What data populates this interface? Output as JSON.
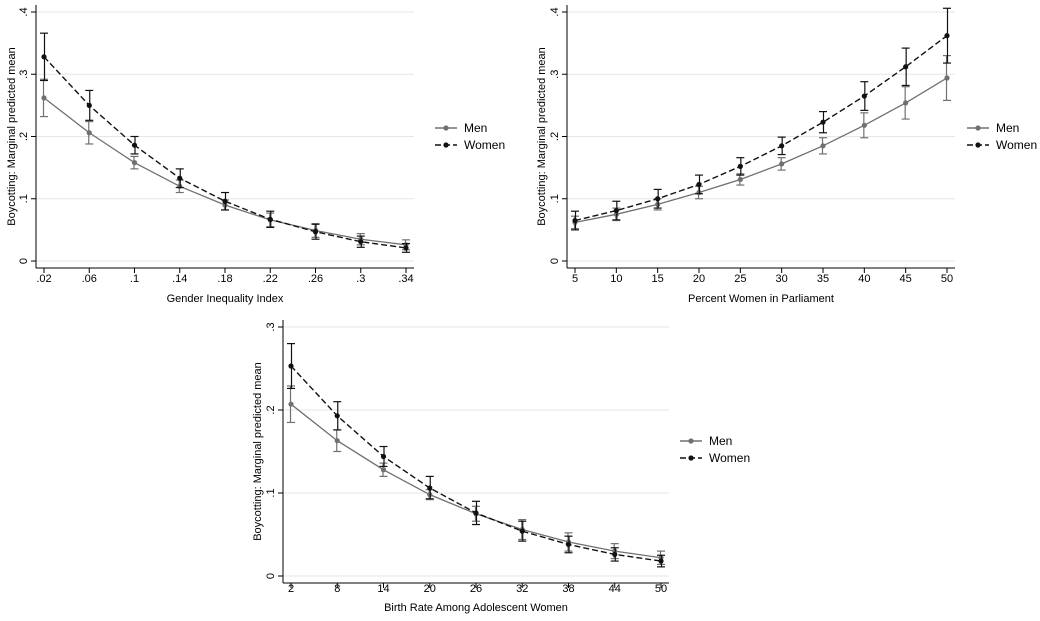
{
  "chart_data": [
    {
      "type": "line",
      "xlabel": "Gender Inequality Index",
      "ylabel": "Boycotting: Marginal predicted mean",
      "x": [
        0.02,
        0.06,
        0.1,
        0.14,
        0.18,
        0.22,
        0.26,
        0.3,
        0.34
      ],
      "xticks": [
        ".02",
        ".06",
        ".1",
        ".14",
        ".18",
        ".22",
        ".26",
        ".3",
        ".34"
      ],
      "yticks": [
        0,
        0.1,
        0.2,
        0.3,
        0.4
      ],
      "yticklabels": [
        "0",
        ".1",
        ".2",
        ".3",
        ".4"
      ],
      "ylim": [
        0,
        0.4
      ],
      "grid": true,
      "legend": "right",
      "series": [
        {
          "name": "Men",
          "values": [
            0.262,
            0.206,
            0.158,
            0.12,
            0.09,
            0.066,
            0.049,
            0.035,
            0.026
          ],
          "ci_low": [
            0.232,
            0.188,
            0.148,
            0.11,
            0.082,
            0.055,
            0.038,
            0.026,
            0.018
          ],
          "ci_high": [
            0.292,
            0.224,
            0.168,
            0.13,
            0.098,
            0.077,
            0.06,
            0.044,
            0.034
          ]
        },
        {
          "name": "Women",
          "values": [
            0.328,
            0.25,
            0.186,
            0.133,
            0.096,
            0.067,
            0.047,
            0.031,
            0.021
          ],
          "ci_low": [
            0.29,
            0.226,
            0.172,
            0.118,
            0.082,
            0.054,
            0.035,
            0.022,
            0.014
          ],
          "ci_high": [
            0.366,
            0.274,
            0.2,
            0.148,
            0.11,
            0.08,
            0.059,
            0.04,
            0.028
          ]
        }
      ]
    },
    {
      "type": "line",
      "xlabel": "Percent Women in Parliament",
      "ylabel": "Boycotting: Marginal predicted mean",
      "x": [
        5,
        10,
        15,
        20,
        25,
        30,
        35,
        40,
        45,
        50
      ],
      "xticks": [
        "5",
        "10",
        "15",
        "20",
        "25",
        "30",
        "35",
        "40",
        "45",
        "50"
      ],
      "yticks": [
        0,
        0.1,
        0.2,
        0.3,
        0.4
      ],
      "yticklabels": [
        "0",
        ".1",
        ".2",
        ".3",
        ".4"
      ],
      "ylim": [
        0,
        0.4
      ],
      "grid": true,
      "legend": "right",
      "series": [
        {
          "name": "Men",
          "values": [
            0.062,
            0.075,
            0.091,
            0.11,
            0.131,
            0.156,
            0.185,
            0.218,
            0.254,
            0.294
          ],
          "ci_low": [
            0.052,
            0.065,
            0.082,
            0.1,
            0.122,
            0.146,
            0.172,
            0.198,
            0.228,
            0.258
          ],
          "ci_high": [
            0.072,
            0.085,
            0.1,
            0.12,
            0.14,
            0.166,
            0.198,
            0.238,
            0.28,
            0.33
          ]
        },
        {
          "name": "Women",
          "values": [
            0.065,
            0.081,
            0.1,
            0.123,
            0.152,
            0.185,
            0.223,
            0.265,
            0.312,
            0.362
          ],
          "ci_low": [
            0.05,
            0.066,
            0.085,
            0.108,
            0.138,
            0.171,
            0.206,
            0.242,
            0.282,
            0.318
          ],
          "ci_high": [
            0.08,
            0.096,
            0.115,
            0.138,
            0.166,
            0.199,
            0.24,
            0.288,
            0.342,
            0.406
          ]
        }
      ]
    },
    {
      "type": "line",
      "xlabel": "Birth Rate Among Adolescent Women",
      "ylabel": "Boycotting: Marginal predicted mean",
      "x": [
        2,
        8,
        14,
        20,
        26,
        32,
        38,
        44,
        50
      ],
      "xticks": [
        "2",
        "8",
        "14",
        "20",
        "26",
        "32",
        "38",
        "44",
        "50"
      ],
      "yticks": [
        0,
        0.1,
        0.2,
        0.3
      ],
      "yticklabels": [
        "0",
        ".1",
        ".2",
        ".3"
      ],
      "ylim": [
        0,
        0.3
      ],
      "grid": true,
      "legend": "right",
      "series": [
        {
          "name": "Men",
          "values": [
            0.207,
            0.163,
            0.128,
            0.098,
            0.075,
            0.056,
            0.041,
            0.03,
            0.022
          ],
          "ci_low": [
            0.185,
            0.15,
            0.12,
            0.092,
            0.066,
            0.044,
            0.03,
            0.021,
            0.014
          ],
          "ci_high": [
            0.229,
            0.176,
            0.136,
            0.104,
            0.084,
            0.068,
            0.052,
            0.039,
            0.03
          ]
        },
        {
          "name": "Women",
          "values": [
            0.253,
            0.193,
            0.144,
            0.106,
            0.076,
            0.054,
            0.038,
            0.026,
            0.018
          ],
          "ci_low": [
            0.226,
            0.176,
            0.132,
            0.093,
            0.062,
            0.042,
            0.028,
            0.018,
            0.011
          ],
          "ci_high": [
            0.28,
            0.21,
            0.156,
            0.12,
            0.09,
            0.066,
            0.048,
            0.034,
            0.025
          ]
        }
      ]
    }
  ],
  "colors": {
    "men": "#707070",
    "women": "#111111"
  }
}
